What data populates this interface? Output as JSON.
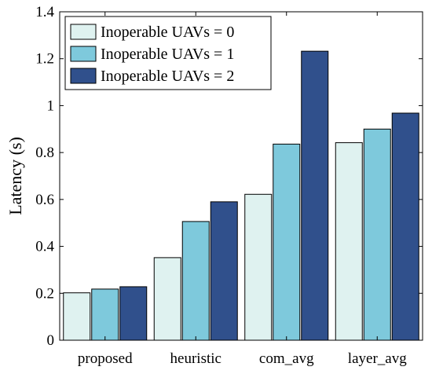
{
  "chart_data": {
    "type": "bar",
    "categories": [
      "proposed",
      "heuristic",
      "com_avg",
      "layer_avg"
    ],
    "series": [
      {
        "name": "Inoperable UAVs = 0",
        "values": [
          0.202,
          0.352,
          0.622,
          0.842
        ],
        "color": "#dff2f0"
      },
      {
        "name": "Inoperable UAVs = 1",
        "values": [
          0.218,
          0.506,
          0.836,
          0.9
        ],
        "color": "#7ec9dc"
      },
      {
        "name": "Inoperable UAVs = 2",
        "values": [
          0.228,
          0.59,
          1.232,
          0.968
        ],
        "color": "#30508c"
      }
    ],
    "title": "",
    "xlabel": "",
    "ylabel": "Latency (s)",
    "ylim": [
      0,
      1.4
    ],
    "yticks": [
      "0",
      "0.2",
      "0.4",
      "0.6",
      "0.8",
      "1",
      "1.2",
      "1.4"
    ],
    "grid": false,
    "legend_position": "top-left"
  }
}
